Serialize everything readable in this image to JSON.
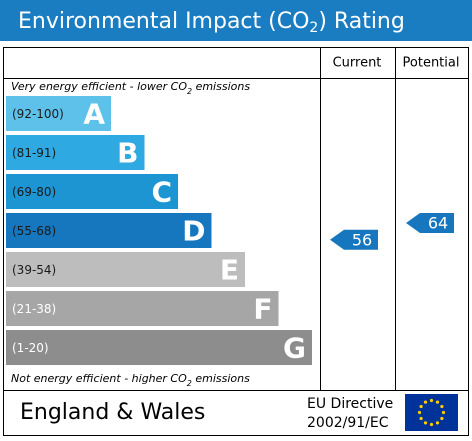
{
  "title": {
    "before": "Environmental Impact (CO",
    "sub": "2",
    "after": ") Rating"
  },
  "columns": {
    "current": "Current",
    "potential": "Potential"
  },
  "top_note": {
    "before": "Very energy efficient - lower CO",
    "sub": "2",
    "after": " emissions"
  },
  "bottom_note": {
    "before": "Not energy efficient - higher CO",
    "sub": "2",
    "after": " emissions"
  },
  "bands": [
    {
      "range": "(92-100)",
      "letter": "A",
      "color": "#5ec1ea"
    },
    {
      "range": "(81-91)",
      "letter": "B",
      "color": "#2ea9e1"
    },
    {
      "range": "(69-80)",
      "letter": "C",
      "color": "#1c95d2"
    },
    {
      "range": "(55-68)",
      "letter": "D",
      "color": "#1777be"
    },
    {
      "range": "(39-54)",
      "letter": "E",
      "color": "#bdbdbd"
    },
    {
      "range": "(21-38)",
      "letter": "F",
      "color": "#a6a6a6"
    },
    {
      "range": "(1-20)",
      "letter": "G",
      "color": "#8d8d8d"
    }
  ],
  "current": 56,
  "potential": 64,
  "footer": {
    "region": "England & Wales",
    "directive_line1": "EU Directive",
    "directive_line2": "2002/91/EC"
  }
}
